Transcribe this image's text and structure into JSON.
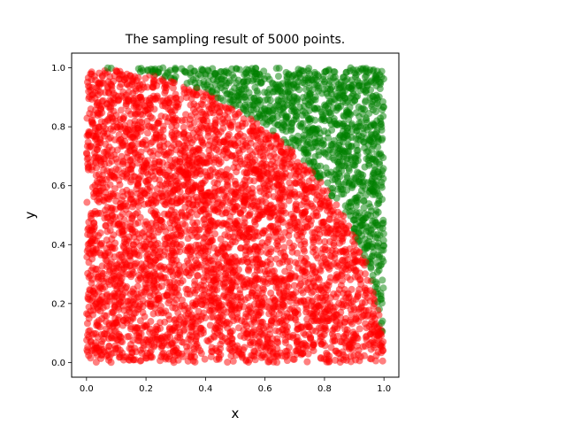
{
  "chart_data": {
    "type": "scatter",
    "title": "The sampling result of 5000 points.",
    "xlabel": "x",
    "ylabel": "y",
    "xlim": [
      -0.05,
      1.05
    ],
    "ylim": [
      -0.05,
      1.05
    ],
    "x_ticks": [
      "0.0",
      "0.2",
      "0.4",
      "0.6",
      "0.8",
      "1.0"
    ],
    "y_ticks": [
      "0.0",
      "0.2",
      "0.4",
      "0.6",
      "0.8",
      "1.0"
    ],
    "x_tick_values": [
      0.0,
      0.2,
      0.4,
      0.6,
      0.8,
      1.0
    ],
    "y_tick_values": [
      0.0,
      0.2,
      0.4,
      0.6,
      0.8,
      1.0
    ],
    "grid": false,
    "n_points": 5000,
    "x_range": [
      0,
      1
    ],
    "y_range": [
      0,
      1
    ],
    "classification": {
      "inside": {
        "condition": "x^2 + y^2 <= 1",
        "color": "#ff0000"
      },
      "outside": {
        "condition": "x^2 + y^2 > 1",
        "color": "#008000"
      }
    },
    "marker": {
      "shape": "circle",
      "alpha": 0.5
    }
  }
}
